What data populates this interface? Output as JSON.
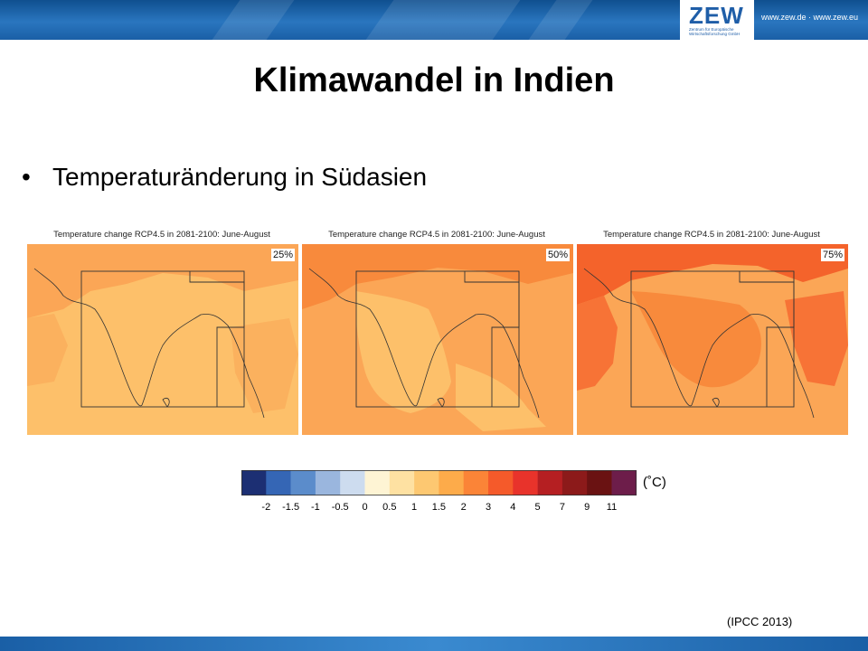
{
  "header": {
    "logo_text": "ZEW",
    "logo_subtitle": "Zentrum für Europäische Wirtschaftsforschung GmbH",
    "website": "www.zew.de · www.zew.eu",
    "band_color": "#1f5ea8"
  },
  "slide": {
    "title": "Klimawandel in Indien",
    "bullet": "Temperaturänderung in Südasien",
    "source": "(IPCC 2013)"
  },
  "maps": [
    {
      "title": "Temperature change RCP4.5 in 2081-2100: June-August",
      "percentile": "25%"
    },
    {
      "title": "Temperature change RCP4.5 in 2081-2100: June-August",
      "percentile": "50%"
    },
    {
      "title": "Temperature change RCP4.5 in 2081-2100: June-August",
      "percentile": "75%"
    }
  ],
  "colorbar": {
    "unit": "(˚C)",
    "colors": [
      "#1c2f73",
      "#3566b5",
      "#5b8ccb",
      "#9ab6de",
      "#cddcef",
      "#fef4d4",
      "#fee1a2",
      "#fdc871",
      "#fdab4a",
      "#fb8437",
      "#f55a2a",
      "#e8332b",
      "#b51f22",
      "#8c1a1a",
      "#6a1212",
      "#6d1d4a"
    ],
    "ticks": [
      "-2",
      "-1.5",
      "-1",
      "-0.5",
      "0",
      "0.5",
      "1",
      "1.5",
      "2",
      "3",
      "4",
      "5",
      "7",
      "9",
      "11"
    ]
  }
}
